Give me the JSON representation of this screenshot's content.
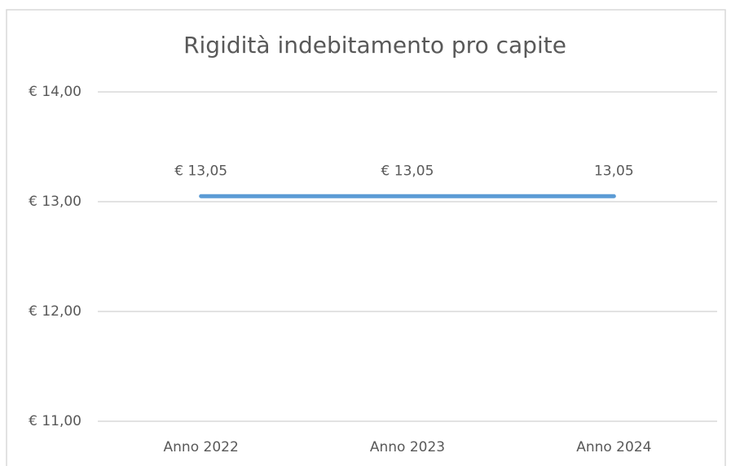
{
  "chart_data": {
    "type": "line",
    "title": "Rigidità indebitamento pro capite",
    "categories": [
      "Anno 2022",
      "Anno 2023",
      "Anno 2024"
    ],
    "series": [
      {
        "name": "Rigidità indebitamento pro capite",
        "color": "#5b9bd5",
        "values": [
          13.05,
          13.05,
          13.05
        ],
        "value_labels": [
          "€ 13,05",
          "€ 13,05",
          "13,05"
        ]
      }
    ],
    "ylim": [
      11,
      14
    ],
    "yticks": [
      {
        "value": 11,
        "label": "€ 11,00"
      },
      {
        "value": 12,
        "label": "€ 12,00"
      },
      {
        "value": 13,
        "label": "€ 13,00"
      },
      {
        "value": 14,
        "label": "€ 14,00"
      }
    ],
    "grid": true
  }
}
